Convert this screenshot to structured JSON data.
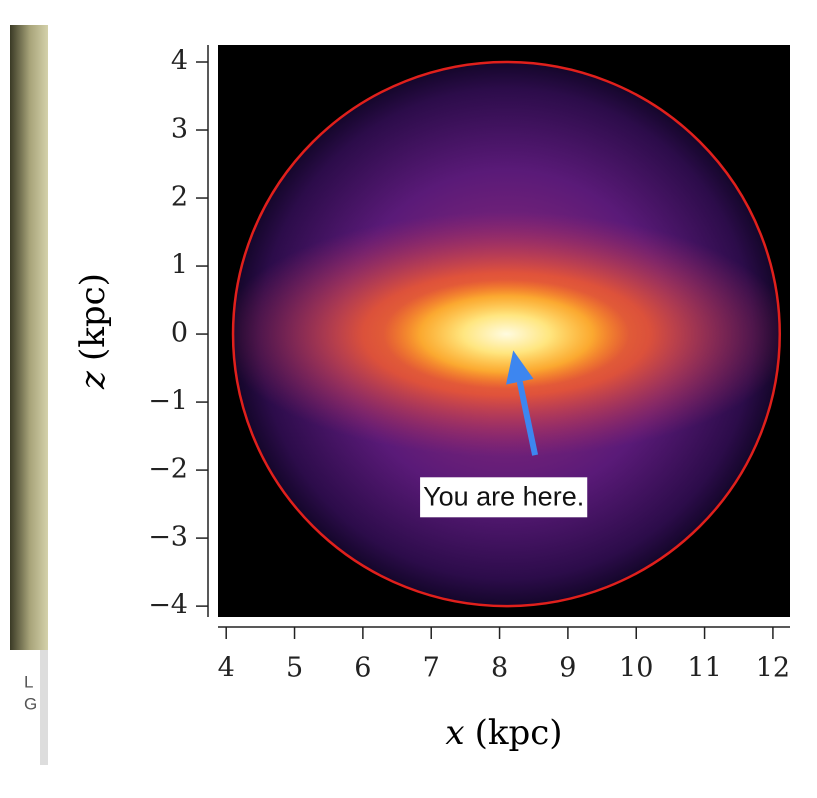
{
  "chart_data": {
    "type": "density_map",
    "xlabel_var": "x",
    "xlabel_unit": "(kpc)",
    "ylabel_var": "z",
    "ylabel_unit": "(kpc)",
    "xlim": [
      3.88,
      12.25
    ],
    "ylim": [
      -4.16,
      4.25
    ],
    "xticks": [
      4,
      5,
      6,
      7,
      8,
      9,
      10,
      11,
      12
    ],
    "yticks": [
      4,
      3,
      2,
      1,
      0,
      {
        "value": -1,
        "label": "−1"
      },
      {
        "value": -2,
        "label": "−2"
      },
      {
        "value": -3,
        "label": "−3"
      },
      {
        "value": -4,
        "label": "−4"
      }
    ],
    "circle": {
      "center": [
        8.1,
        0
      ],
      "radius": 4,
      "color": "#e0201c"
    },
    "annotation": {
      "text": "You are here.",
      "position": [
        8.06,
        -2.4
      ],
      "arrow_from": [
        8.52,
        -1.78
      ],
      "arrow_to": [
        8.2,
        -0.24
      ],
      "arrow_color": "#3d86f0"
    },
    "caption_fragments": [
      "L",
      "G"
    ]
  }
}
